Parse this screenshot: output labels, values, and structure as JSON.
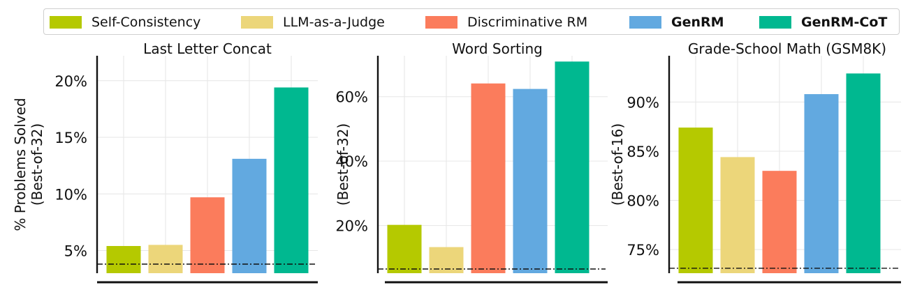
{
  "legend": [
    {
      "label": "Self-Consistency",
      "color": "#b5c900",
      "bold": false
    },
    {
      "label": "LLM-as-a-Judge",
      "color": "#ecd67a",
      "bold": false
    },
    {
      "label": "Discriminative RM",
      "color": "#fb7c5c",
      "bold": false
    },
    {
      "label": "GenRM",
      "color": "#62a9e0",
      "bold": true
    },
    {
      "label": "GenRM-CoT",
      "color": "#00b890",
      "bold": true
    }
  ],
  "chart_data": [
    {
      "type": "bar",
      "title": "Last Letter Concat",
      "ylabel": [
        "% Problems Solved",
        "(Best-of-32)"
      ],
      "yticks": [
        5,
        10,
        15,
        20
      ],
      "ytick_labels": [
        "5%",
        "10%",
        "15%",
        "20%"
      ],
      "ylim": [
        3,
        22.2
      ],
      "categories": [
        "Self-Consistency",
        "LLM-as-a-Judge",
        "Discriminative RM",
        "GenRM",
        "GenRM-CoT"
      ],
      "values": [
        5.4,
        5.5,
        9.7,
        13.1,
        19.4
      ],
      "baseline": 3.8,
      "grid": true
    },
    {
      "type": "bar",
      "title": "Word Sorting",
      "ylabel": [
        "(Best-of-32)"
      ],
      "yticks": [
        20,
        40,
        60
      ],
      "ytick_labels": [
        "20%",
        "40%",
        "60%"
      ],
      "ylim": [
        5.2,
        72.7
      ],
      "categories": [
        "Self-Consistency",
        "LLM-as-a-Judge",
        "Discriminative RM",
        "GenRM",
        "GenRM-CoT"
      ],
      "values": [
        20.2,
        13.3,
        64.1,
        62.4,
        70.9
      ],
      "baseline": 6.5,
      "grid": true
    },
    {
      "type": "bar",
      "title": "Grade-School Math (GSM8K)",
      "ylabel": [
        "(Best-of-16)"
      ],
      "yticks": [
        75,
        80,
        85,
        90
      ],
      "ytick_labels": [
        "75%",
        "80%",
        "85%",
        "90%"
      ],
      "ylim": [
        72.6,
        94.7
      ],
      "categories": [
        "Self-Consistency",
        "LLM-as-a-Judge",
        "Discriminative RM",
        "GenRM",
        "GenRM-CoT"
      ],
      "values": [
        87.4,
        84.4,
        83.0,
        90.8,
        92.9
      ],
      "baseline": 73.1,
      "grid": true
    }
  ]
}
